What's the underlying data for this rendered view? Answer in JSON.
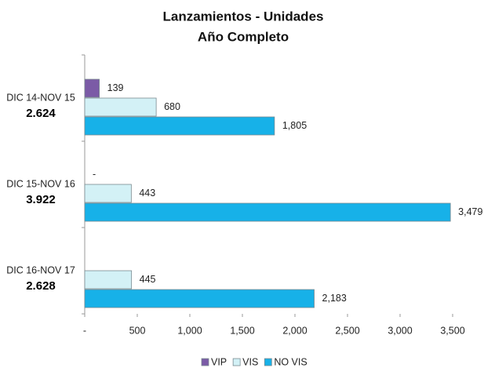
{
  "chart_data": {
    "type": "hbar",
    "title": "Lanzamientos - Unidades",
    "subtitle": "Año Completo",
    "categories": [
      "DIC 14-NOV 15",
      "DIC 15-NOV 16",
      "DIC 16-NOV 17"
    ],
    "group_totals": [
      "2.624",
      "3.922",
      "2.628"
    ],
    "series": [
      {
        "name": "VIP",
        "color": "#7b5ba6",
        "values": [
          139,
          0,
          null
        ],
        "value_labels": [
          "139",
          "-",
          null
        ]
      },
      {
        "name": "VIS",
        "color": "#d3f1f6",
        "values": [
          680,
          443,
          445
        ],
        "value_labels": [
          "680",
          "443",
          "445"
        ]
      },
      {
        "name": "NO VIS",
        "color": "#17b1e8",
        "values": [
          1805,
          3479,
          2183
        ],
        "value_labels": [
          "1,805",
          "3,479",
          "2,183"
        ]
      }
    ],
    "xlim": [
      0,
      3500
    ],
    "xticks": [
      {
        "value": 0,
        "label": "-"
      },
      500,
      {
        "value": 1000,
        "label": "1,000"
      },
      {
        "value": 1500,
        "label": "1,500"
      },
      {
        "value": 2000,
        "label": "2,000"
      },
      {
        "value": 2500,
        "label": "2,500"
      },
      {
        "value": 3000,
        "label": "3,000"
      },
      {
        "value": 3500,
        "label": "3,500"
      }
    ],
    "legend": "bottom"
  }
}
